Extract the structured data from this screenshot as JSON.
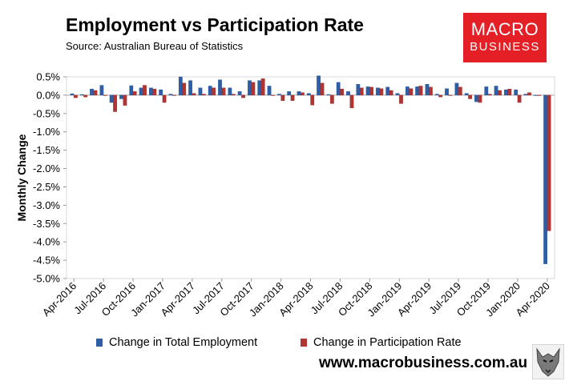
{
  "header": {
    "title": "Employment vs Participation Rate",
    "source": "Source: Australian Bureau of Statistics"
  },
  "logo": {
    "line1": "MACRO",
    "line2": "BUSINESS",
    "color": "#e41f26"
  },
  "footer": {
    "url": "www.macrobusiness.com.au",
    "mascot_icon": "wolf-icon"
  },
  "colors": {
    "employment": "#2e5ea6",
    "participation": "#b03432"
  },
  "chart_data": {
    "type": "bar",
    "title": "Employment vs Participation Rate",
    "xlabel": "",
    "ylabel": "Monthly Change",
    "ylim": [
      -5.0,
      0.5
    ],
    "yticks": [
      "0.5%",
      "0.0%",
      "-0.5%",
      "-1.0%",
      "-1.5%",
      "-2.0%",
      "-2.5%",
      "-3.0%",
      "-3.5%",
      "-4.0%",
      "-4.5%",
      "-5.0%"
    ],
    "ytick_values": [
      0.5,
      0.0,
      -0.5,
      -1.0,
      -1.5,
      -2.0,
      -2.5,
      -3.0,
      -3.5,
      -4.0,
      -4.5,
      -5.0
    ],
    "xtick_labels": [
      "Apr-2016",
      "Jul-2016",
      "Oct-2016",
      "Jan-2017",
      "Apr-2017",
      "Jul-2017",
      "Oct-2017",
      "Jan-2018",
      "Apr-2018",
      "Jul-2018",
      "Oct-2018",
      "Jan-2019",
      "Apr-2019",
      "Jul-2019",
      "Oct-2019",
      "Jan-2020",
      "Apr-2020"
    ],
    "xtick_every": 3,
    "categories": [
      "Apr-2016",
      "May-2016",
      "Jun-2016",
      "Jul-2016",
      "Aug-2016",
      "Sep-2016",
      "Oct-2016",
      "Nov-2016",
      "Dec-2016",
      "Jan-2017",
      "Feb-2017",
      "Mar-2017",
      "Apr-2017",
      "May-2017",
      "Jun-2017",
      "Jul-2017",
      "Aug-2017",
      "Sep-2017",
      "Oct-2017",
      "Nov-2017",
      "Dec-2017",
      "Jan-2018",
      "Feb-2018",
      "Mar-2018",
      "Apr-2018",
      "May-2018",
      "Jun-2018",
      "Jul-2018",
      "Aug-2018",
      "Sep-2018",
      "Oct-2018",
      "Nov-2018",
      "Dec-2018",
      "Jan-2019",
      "Feb-2019",
      "Mar-2019",
      "Apr-2019",
      "May-2019",
      "Jun-2019",
      "Jul-2019",
      "Aug-2019",
      "Sep-2019",
      "Oct-2019",
      "Nov-2019",
      "Dec-2019",
      "Jan-2020",
      "Feb-2020",
      "Mar-2020",
      "Apr-2020"
    ],
    "series": [
      {
        "name": "Change in Total Employment",
        "values": [
          0.04,
          0.02,
          0.17,
          0.27,
          -0.2,
          -0.1,
          0.26,
          0.2,
          0.2,
          0.15,
          0.03,
          0.5,
          0.4,
          0.2,
          0.25,
          0.42,
          0.2,
          0.1,
          0.4,
          0.4,
          0.25,
          0.03,
          0.1,
          0.1,
          0.05,
          0.53,
          0.02,
          0.35,
          0.1,
          0.3,
          0.23,
          0.2,
          0.22,
          0.05,
          0.23,
          0.23,
          0.3,
          0.03,
          0.18,
          0.33,
          0.05,
          -0.18,
          0.23,
          0.25,
          0.15,
          0.15,
          0.03,
          -0.01,
          -4.6
        ]
      },
      {
        "name": "Change in Participation Rate",
        "values": [
          -0.07,
          -0.05,
          0.13,
          0.0,
          -0.45,
          -0.28,
          0.1,
          0.27,
          0.17,
          -0.2,
          0.0,
          0.33,
          0.05,
          0.03,
          0.2,
          0.2,
          0.03,
          -0.07,
          0.35,
          0.45,
          0.0,
          -0.15,
          -0.15,
          0.07,
          -0.27,
          0.33,
          -0.23,
          0.17,
          -0.35,
          0.2,
          0.22,
          0.18,
          0.13,
          -0.23,
          0.18,
          0.25,
          0.22,
          -0.05,
          0.0,
          0.22,
          -0.1,
          -0.2,
          0.03,
          0.13,
          0.17,
          -0.2,
          0.07,
          -0.01,
          -3.7
        ]
      }
    ],
    "legend_position": "bottom"
  }
}
